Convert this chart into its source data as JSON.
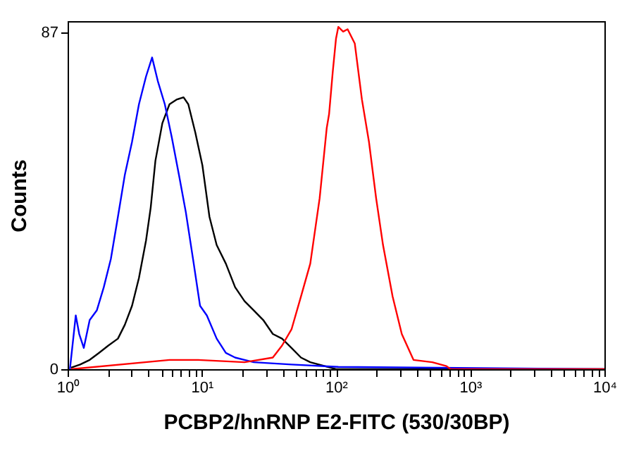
{
  "chart_data": {
    "type": "line",
    "xlabel": "PCBP2/hnRNP E2-FITC (530/30BP)",
    "ylabel": "Counts",
    "log": "x",
    "grid": false,
    "legend": false,
    "marker": "none",
    "line_style": "solid",
    "xlim": [
      1,
      10000
    ],
    "ylim": [
      0,
      90
    ],
    "xticks": [
      {
        "value": 1,
        "label": "10⁰"
      },
      {
        "value": 2,
        "label": null
      },
      {
        "value": 3,
        "label": null
      },
      {
        "value": 4,
        "label": null
      },
      {
        "value": 5,
        "label": null
      },
      {
        "value": 6,
        "label": null
      },
      {
        "value": 7,
        "label": null
      },
      {
        "value": 8,
        "label": null
      },
      {
        "value": 9,
        "label": null
      },
      {
        "value": 10,
        "label": "10¹"
      },
      {
        "value": 20,
        "label": null
      },
      {
        "value": 30,
        "label": null
      },
      {
        "value": 40,
        "label": null
      },
      {
        "value": 50,
        "label": null
      },
      {
        "value": 60,
        "label": null
      },
      {
        "value": 70,
        "label": null
      },
      {
        "value": 80,
        "label": null
      },
      {
        "value": 90,
        "label": null
      },
      {
        "value": 100,
        "label": "10²"
      },
      {
        "value": 200,
        "label": null
      },
      {
        "value": 300,
        "label": null
      },
      {
        "value": 400,
        "label": null
      },
      {
        "value": 500,
        "label": null
      },
      {
        "value": 600,
        "label": null
      },
      {
        "value": 700,
        "label": null
      },
      {
        "value": 800,
        "label": null
      },
      {
        "value": 900,
        "label": null
      },
      {
        "value": 1000,
        "label": "10³"
      },
      {
        "value": 2000,
        "label": null
      },
      {
        "value": 3000,
        "label": null
      },
      {
        "value": 4000,
        "label": null
      },
      {
        "value": 5000,
        "label": null
      },
      {
        "value": 6000,
        "label": null
      },
      {
        "value": 7000,
        "label": null
      },
      {
        "value": 8000,
        "label": null
      },
      {
        "value": 9000,
        "label": null
      },
      {
        "value": 10000,
        "label": "10⁴"
      }
    ],
    "yticks": [
      0,
      87
    ],
    "series": [
      {
        "color": "#000000",
        "x": [
          1.06,
          1.24,
          1.46,
          1.71,
          2.01,
          2.37,
          2.67,
          3.02,
          3.4,
          3.84,
          4.16,
          4.51,
          5.08,
          5.74,
          6.47,
          7.31,
          7.93,
          8.94,
          10.1,
          11.4,
          12.9,
          15.1,
          17.7,
          20.8,
          24.4,
          28.7,
          33.8,
          39.6,
          46.6,
          54.8,
          64.3,
          100,
          10000
        ],
        "values": [
          0.4,
          1.2,
          2.4,
          4.2,
          6.1,
          7.9,
          11.5,
          16.4,
          23.6,
          33.3,
          41.8,
          53.9,
          63.6,
          68.5,
          69.7,
          70.3,
          68.5,
          61.2,
          52.7,
          39.4,
          32.1,
          27.3,
          21.2,
          17.6,
          15.2,
          12.7,
          9.1,
          7.9,
          5.5,
          3,
          1.8,
          0,
          0
        ]
      },
      {
        "color": "#0000ff",
        "x": [
          1.04,
          1.15,
          1.22,
          1.32,
          1.46,
          1.65,
          1.86,
          2.1,
          2.37,
          2.67,
          3.02,
          3.4,
          3.84,
          4.26,
          4.7,
          5.3,
          5.97,
          6.75,
          7.6,
          8.6,
          9.7,
          10.9,
          12.9,
          15.1,
          17.7,
          24.4,
          46.6,
          104,
          10000
        ],
        "values": [
          0,
          13.9,
          9.1,
          5.5,
          12.7,
          15.2,
          21.2,
          28.5,
          39.4,
          50.3,
          58.8,
          68.5,
          75.7,
          80.6,
          74.5,
          68.5,
          60,
          50.3,
          40.6,
          28.5,
          16.4,
          13.9,
          7.9,
          4.2,
          3,
          1.8,
          1.2,
          0.6,
          0
        ]
      },
      {
        "color": "#ff0000",
        "x": [
          1.06,
          5.74,
          9.4,
          20.8,
          33.8,
          39.6,
          46.6,
          54.8,
          64.3,
          75.5,
          85.3,
          88.8,
          94.6,
          100,
          104,
          113,
          122,
          138,
          156,
          176,
          199,
          224,
          264,
          309,
          378,
          522,
          665,
          714,
          10000
        ],
        "values": [
          0,
          2.4,
          2.4,
          1.8,
          3,
          6.1,
          10.3,
          18.8,
          27.3,
          44.2,
          62.4,
          66,
          77,
          85.5,
          88.5,
          87.3,
          87.9,
          84.2,
          69.7,
          58.8,
          44.2,
          32.1,
          18.8,
          9.1,
          2.4,
          1.8,
          0.8,
          0,
          0
        ]
      }
    ]
  }
}
